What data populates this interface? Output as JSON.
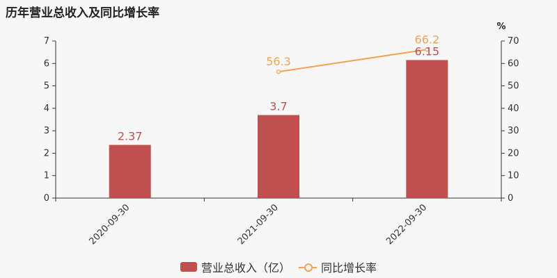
{
  "title": "历年营业总收入及同比增长率",
  "chart_data": {
    "type": "bar",
    "categories": [
      "2020-09-30",
      "2021-09-30",
      "2022-09-30"
    ],
    "series": [
      {
        "name": "营业总收入（亿）",
        "type": "bar",
        "axis": "left",
        "values": [
          2.37,
          3.7,
          6.15
        ],
        "labels": [
          "2.37",
          "3.7",
          "6.15"
        ],
        "color": "#c0504d"
      },
      {
        "name": "同比增长率",
        "type": "line",
        "axis": "right",
        "values": [
          null,
          56.3,
          66.2
        ],
        "labels": [
          "",
          "56.3",
          "66.2"
        ],
        "color": "#f2a254"
      }
    ],
    "ylim_left": [
      0,
      7
    ],
    "ylim_right": [
      0,
      70
    ],
    "yticks_left": [
      "0",
      "1",
      "2",
      "3",
      "4",
      "5",
      "6",
      "7"
    ],
    "yticks_right": [
      "0",
      "10",
      "20",
      "30",
      "40",
      "50",
      "60",
      "70"
    ],
    "right_axis_unit": "%",
    "grid": false,
    "legend_position": "bottom"
  }
}
